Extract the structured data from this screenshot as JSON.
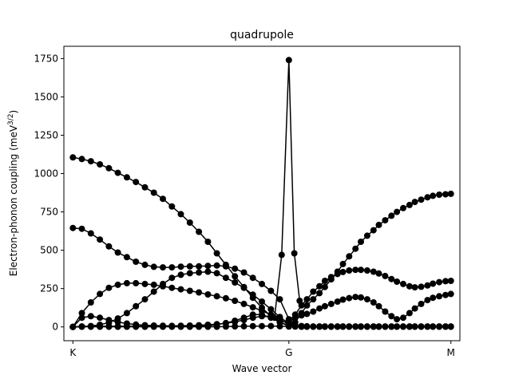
{
  "chart_data": {
    "type": "line",
    "title": "quadrupole",
    "xlabel": "Wave vector",
    "ylabel": "Electron-phonon coupling (meV",
    "ylabel_sup": "3/2",
    "ylabel_close": ")",
    "xlim": [
      -0.5,
      21.5
    ],
    "ylim": [
      -90,
      1830
    ],
    "xticks": [
      {
        "value": 0,
        "label": "K"
      },
      {
        "value": 12,
        "label": "G"
      },
      {
        "value": 21,
        "label": "M"
      }
    ],
    "yticks": [
      0,
      250,
      500,
      750,
      1000,
      1250,
      1500,
      1750
    ],
    "marker": "circle",
    "color": "#000000",
    "grid": false,
    "series": [
      {
        "x": [
          0,
          0.5,
          1,
          1.5,
          2,
          2.5,
          3,
          3.5,
          4,
          4.5,
          5,
          5.5,
          6,
          6.5,
          7,
          7.5,
          8,
          8.5,
          9,
          9.5,
          10,
          10.5,
          11,
          11.5,
          12
        ],
        "values": [
          1105,
          1095,
          1080,
          1060,
          1035,
          1005,
          975,
          945,
          910,
          875,
          835,
          785,
          735,
          680,
          620,
          555,
          480,
          405,
          330,
          260,
          190,
          125,
          70,
          30,
          10
        ]
      },
      {
        "x": [
          0,
          0.5,
          1,
          1.5,
          2,
          2.5,
          3,
          3.5,
          4,
          4.5,
          5,
          5.5,
          6,
          6.5,
          7,
          7.5,
          8,
          8.5,
          9,
          9.5,
          10,
          10.5,
          11,
          11.5,
          12
        ],
        "values": [
          645,
          640,
          610,
          570,
          525,
          485,
          455,
          425,
          405,
          392,
          388,
          388,
          393,
          395,
          395,
          398,
          400,
          395,
          380,
          355,
          320,
          280,
          235,
          180,
          50
        ]
      },
      {
        "x": [
          0,
          0.5,
          1,
          1.5,
          2,
          2.5,
          3,
          3.5,
          4,
          4.5,
          5,
          5.5,
          6,
          6.5,
          7,
          7.5,
          8,
          8.5,
          9,
          9.5,
          10,
          10.5,
          11,
          11.5,
          12
        ],
        "values": [
          0,
          90,
          160,
          215,
          255,
          275,
          285,
          285,
          280,
          275,
          265,
          255,
          245,
          235,
          225,
          212,
          200,
          187,
          170,
          150,
          128,
          105,
          80,
          55,
          30
        ]
      },
      {
        "x": [
          0,
          0.5,
          1,
          1.5,
          2,
          2.5,
          3,
          3.5,
          4,
          4.5,
          5,
          5.5,
          6,
          6.5,
          7,
          7.5,
          8,
          8.5,
          9,
          9.5,
          10,
          10.5,
          11,
          11.5,
          12
        ],
        "values": [
          0,
          2,
          6,
          14,
          28,
          55,
          90,
          135,
          180,
          230,
          280,
          320,
          340,
          350,
          355,
          360,
          350,
          320,
          290,
          255,
          210,
          165,
          115,
          65,
          20
        ]
      },
      {
        "x": [
          0,
          0.5,
          1,
          1.5,
          2,
          2.5,
          3,
          3.5,
          4,
          4.5,
          5,
          5.5,
          6,
          6.5,
          7,
          7.5,
          8,
          8.5,
          9,
          9.5,
          10,
          10.5,
          11,
          11.5,
          12
        ],
        "values": [
          0,
          60,
          70,
          60,
          45,
          32,
          22,
          15,
          11,
          9,
          8,
          7,
          8,
          9,
          11,
          14,
          18,
          24,
          33,
          45,
          60,
          70,
          65,
          45,
          20
        ]
      },
      {
        "x": [
          0,
          0.5,
          1,
          1.5,
          2,
          2.5,
          3,
          3.5,
          4,
          4.5,
          5,
          5.5,
          6,
          6.5,
          7,
          7.5,
          8,
          8.5,
          9,
          9.5,
          10,
          10.5,
          11,
          11.5,
          12
        ],
        "values": [
          0,
          3,
          4,
          4,
          4,
          4,
          4,
          4,
          4,
          4,
          4,
          4,
          4,
          4,
          5,
          8,
          15,
          25,
          40,
          60,
          80,
          80,
          60,
          30,
          5
        ]
      },
      {
        "x": [
          0,
          0.5,
          1,
          1.5,
          2,
          2.5,
          3,
          3.5,
          4,
          4.5,
          5,
          5.5,
          6,
          6.5,
          7,
          7.5,
          8,
          8.5,
          9,
          9.5,
          10,
          10.5,
          11,
          11.5,
          12
        ],
        "values": [
          0,
          1,
          1,
          1,
          1,
          1,
          1,
          1,
          1,
          1,
          1,
          1,
          1,
          1,
          1,
          1,
          1,
          2,
          3,
          4,
          5,
          5,
          6,
          4,
          2
        ]
      },
      {
        "x": [
          11.2,
          11.6,
          12,
          12.3,
          12.6
        ],
        "values": [
          60,
          470,
          1740,
          480,
          170
        ]
      },
      {
        "x": [
          12,
          12.35,
          12.7,
          13,
          13.35,
          13.7,
          14,
          14.35,
          14.7,
          15,
          15.35,
          15.7,
          16,
          16.35,
          16.7,
          17,
          17.35,
          17.7,
          18,
          18.35,
          18.7,
          19,
          19.35,
          19.7,
          20,
          20.35,
          20.7,
          21
        ],
        "values": [
          10,
          30,
          90,
          140,
          180,
          220,
          260,
          310,
          360,
          410,
          460,
          510,
          555,
          595,
          630,
          665,
          695,
          725,
          750,
          775,
          795,
          815,
          830,
          845,
          855,
          862,
          865,
          868
        ]
      },
      {
        "x": [
          12,
          12.35,
          12.7,
          13,
          13.35,
          13.7,
          14,
          14.35,
          14.7,
          15,
          15.35,
          15.7,
          16,
          16.35,
          16.7,
          17,
          17.35,
          17.7,
          18,
          18.35,
          18.7,
          19,
          19.35,
          19.7,
          20,
          20.35,
          20.7,
          21
        ],
        "values": [
          40,
          80,
          140,
          180,
          230,
          265,
          300,
          325,
          345,
          358,
          368,
          372,
          372,
          368,
          360,
          348,
          332,
          312,
          295,
          280,
          265,
          258,
          262,
          270,
          282,
          292,
          298,
          300
        ]
      },
      {
        "x": [
          12,
          12.35,
          12.7,
          13,
          13.35,
          13.7,
          14,
          14.35,
          14.7,
          15,
          15.35,
          15.7,
          16,
          16.35,
          16.7,
          17,
          17.35,
          17.7,
          18,
          18.35,
          18.7,
          19,
          19.35,
          19.7,
          20,
          20.35,
          20.7,
          21
        ],
        "values": [
          30,
          60,
          75,
          85,
          100,
          120,
          135,
          150,
          165,
          178,
          188,
          195,
          192,
          180,
          160,
          135,
          100,
          70,
          50,
          60,
          90,
          120,
          150,
          175,
          190,
          200,
          208,
          215
        ]
      },
      {
        "x": [
          12,
          12.35,
          12.7,
          13,
          13.35,
          13.7,
          14,
          14.35,
          14.7,
          15,
          15.35,
          15.7,
          16,
          16.35,
          16.7,
          17,
          17.35,
          17.7,
          18,
          18.35,
          18.7,
          19,
          19.35,
          19.7,
          20,
          20.35,
          20.7,
          21
        ],
        "values": [
          20,
          10,
          6,
          4,
          3,
          3,
          3,
          3,
          3,
          3,
          3,
          3,
          3,
          3,
          3,
          3,
          3,
          3,
          3,
          3,
          3,
          3,
          3,
          3,
          3,
          3,
          3,
          3
        ]
      },
      {
        "x": [
          12,
          12.35,
          12.7,
          13,
          13.35,
          13.7,
          14,
          14.35,
          14.7,
          15,
          15.35,
          15.7,
          16,
          16.35,
          16.7,
          17,
          17.35,
          17.7,
          18,
          18.35,
          18.7,
          19,
          19.35,
          19.7,
          20,
          20.35,
          20.7,
          21
        ],
        "values": [
          5,
          2,
          1,
          1,
          1,
          1,
          1,
          1,
          1,
          1,
          1,
          1,
          1,
          1,
          1,
          1,
          1,
          1,
          1,
          1,
          1,
          1,
          1,
          1,
          1,
          1,
          1,
          1
        ]
      }
    ]
  }
}
